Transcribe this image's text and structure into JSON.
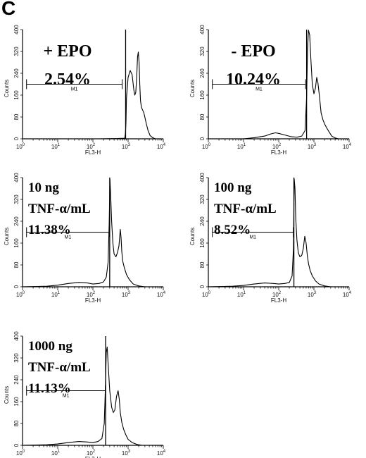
{
  "figure_label": "C",
  "chart_data": [
    {
      "type": "line",
      "id": "epo-plus",
      "annotation": [
        "+ EPO",
        "2.54%"
      ],
      "xlabel": "FL3-H",
      "ylabel": "Counts",
      "xscale": "log",
      "xlim": [
        1,
        10000
      ],
      "ylim": [
        0,
        400
      ],
      "yticks": [
        0,
        80,
        160,
        240,
        320,
        400
      ],
      "xticks": [
        "10^0",
        "10^1",
        "10^2",
        "10^3",
        "10^4"
      ],
      "gate_x": 850,
      "marker": {
        "label": "M1",
        "range": [
          1.3,
          680
        ]
      },
      "histogram": {
        "x": [
          1,
          5,
          30,
          150,
          500,
          800,
          840,
          870,
          900,
          1000,
          1150,
          1300,
          1450,
          1550,
          1650,
          1750,
          1850,
          1950,
          2050,
          2150,
          2250,
          2400,
          2600,
          2800,
          3000,
          3300,
          3700,
          4200,
          5000,
          6000
        ],
        "y": [
          0,
          0,
          0,
          0,
          1,
          2,
          20,
          60,
          150,
          225,
          250,
          235,
          180,
          160,
          170,
          225,
          300,
          318,
          280,
          200,
          140,
          115,
          105,
          95,
          78,
          55,
          30,
          12,
          4,
          0
        ]
      }
    },
    {
      "type": "line",
      "id": "epo-minus",
      "annotation": [
        "- EPO",
        "10.24%"
      ],
      "xlabel": "FL3-H",
      "ylabel": "Counts",
      "xscale": "log",
      "xlim": [
        1,
        10000
      ],
      "ylim": [
        0,
        400
      ],
      "yticks": [
        0,
        80,
        160,
        240,
        320,
        400
      ],
      "xticks": [
        "10^0",
        "10^1",
        "10^2",
        "10^3",
        "10^4"
      ],
      "gate_x": 620,
      "marker": {
        "label": "M1",
        "range": [
          1.3,
          580
        ]
      },
      "histogram": {
        "x": [
          1,
          10,
          20,
          40,
          60,
          80,
          100,
          150,
          220,
          330,
          450,
          560,
          620,
          660,
          700,
          760,
          820,
          900,
          1000,
          1100,
          1200,
          1300,
          1450,
          1600,
          1800,
          2000,
          2300,
          2700,
          3200,
          4000,
          5000
        ],
        "y": [
          0,
          0,
          4,
          10,
          18,
          22,
          20,
          14,
          8,
          6,
          10,
          30,
          150,
          330,
          398,
          380,
          290,
          200,
          165,
          185,
          225,
          205,
          150,
          95,
          70,
          55,
          40,
          25,
          10,
          3,
          0
        ]
      }
    },
    {
      "type": "line",
      "id": "tnf-10",
      "annotation": [
        "10 ng",
        "TNF-α/mL",
        "11.38%"
      ],
      "xlabel": "FL3-H",
      "ylabel": "Counts",
      "xscale": "log",
      "xlim": [
        1,
        10000
      ],
      "ylim": [
        0,
        400
      ],
      "yticks": [
        0,
        80,
        160,
        240,
        320,
        400
      ],
      "xticks": [
        "10^0",
        "10^1",
        "10^2",
        "10^3",
        "10^4"
      ],
      "gate_x": 300,
      "marker": {
        "label": "M1",
        "range": [
          1.3,
          290
        ]
      },
      "histogram": {
        "x": [
          1,
          5,
          10,
          20,
          40,
          70,
          100,
          150,
          200,
          240,
          270,
          290,
          305,
          320,
          340,
          370,
          400,
          450,
          500,
          550,
          600,
          630,
          660,
          700,
          780,
          900,
          1100,
          1400,
          2000,
          3000
        ],
        "y": [
          0,
          2,
          6,
          12,
          16,
          14,
          10,
          12,
          18,
          35,
          90,
          230,
          395,
          330,
          240,
          160,
          120,
          110,
          125,
          150,
          210,
          180,
          130,
          95,
          70,
          45,
          25,
          10,
          3,
          0
        ]
      }
    },
    {
      "type": "line",
      "id": "tnf-100",
      "annotation": [
        "100 ng",
        "TNF-α/mL",
        "8.52%"
      ],
      "xlabel": "FL3-H",
      "ylabel": "Counts",
      "xscale": "log",
      "xlim": [
        1,
        10000
      ],
      "ylim": [
        0,
        400
      ],
      "yticks": [
        0,
        80,
        160,
        240,
        320,
        400
      ],
      "xticks": [
        "10^0",
        "10^1",
        "10^2",
        "10^3",
        "10^4"
      ],
      "gate_x": 270,
      "marker": {
        "label": "M1",
        "range": [
          1.3,
          260
        ]
      },
      "histogram": {
        "x": [
          1,
          5,
          10,
          20,
          40,
          70,
          100,
          150,
          200,
          240,
          262,
          275,
          290,
          305,
          330,
          360,
          400,
          450,
          500,
          550,
          600,
          650,
          700,
          780,
          900,
          1100,
          1400,
          2000,
          3000
        ],
        "y": [
          0,
          2,
          5,
          10,
          14,
          12,
          10,
          12,
          16,
          40,
          140,
          395,
          360,
          250,
          170,
          125,
          110,
          115,
          140,
          185,
          160,
          115,
          85,
          60,
          40,
          22,
          10,
          3,
          0
        ]
      }
    },
    {
      "type": "line",
      "id": "tnf-1000",
      "annotation": [
        "1000 ng",
        "TNF-α/mL",
        "11.13%"
      ],
      "xlabel": "FL3-H",
      "ylabel": "Counts",
      "xscale": "log",
      "xlim": [
        1,
        10000
      ],
      "ylim": [
        0,
        400
      ],
      "yticks": [
        0,
        80,
        160,
        240,
        320,
        400
      ],
      "xticks": [
        "10^0",
        "10^1",
        "10^2",
        "10^3",
        "10^4"
      ],
      "gate_x": 230,
      "marker": {
        "label": "M1",
        "range": [
          1.3,
          225
        ]
      },
      "histogram": {
        "x": [
          1,
          5,
          10,
          20,
          40,
          70,
          100,
          140,
          180,
          210,
          225,
          240,
          255,
          270,
          300,
          340,
          380,
          420,
          470,
          520,
          560,
          600,
          660,
          740,
          850,
          1000,
          1300,
          1800,
          2500
        ],
        "y": [
          0,
          2,
          5,
          10,
          14,
          12,
          10,
          14,
          25,
          80,
          200,
          340,
          360,
          300,
          200,
          140,
          120,
          130,
          180,
          200,
          170,
          120,
          85,
          60,
          40,
          22,
          10,
          3,
          0
        ]
      }
    }
  ]
}
